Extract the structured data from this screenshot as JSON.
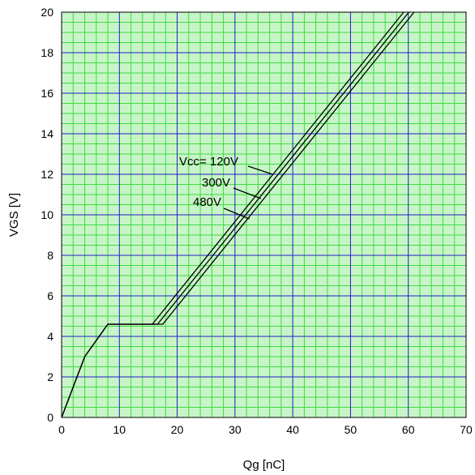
{
  "chart_data": {
    "type": "line",
    "xlabel": "Qg [nC]",
    "ylabel": "VGS [V]",
    "xlim": [
      0,
      70
    ],
    "ylim": [
      0,
      20
    ],
    "x_ticks": [
      "0",
      "10",
      "20",
      "30",
      "40",
      "50",
      "60",
      "70"
    ],
    "y_ticks": [
      "0",
      "2",
      "4",
      "6",
      "8",
      "10",
      "12",
      "14",
      "16",
      "18",
      "20"
    ],
    "grid": {
      "major": true,
      "minor": true,
      "major_color": "#1f1fc8",
      "minor_color": "#3ddc3d",
      "background": "#c8f5c8"
    },
    "series": [
      {
        "label": "Vcc= 120V",
        "x": [
          0,
          4,
          8,
          15.7,
          59.2
        ],
        "y": [
          0,
          3.0,
          4.6,
          4.6,
          20
        ]
      },
      {
        "label": "300V",
        "x": [
          0,
          4,
          8,
          16.6,
          60.1
        ],
        "y": [
          0,
          3.0,
          4.6,
          4.6,
          20
        ]
      },
      {
        "label": "480V",
        "x": [
          0,
          4,
          8,
          17.5,
          61.0
        ],
        "y": [
          0,
          3.0,
          4.6,
          4.6,
          20
        ]
      }
    ],
    "annotations": [
      {
        "text": "Vcc= 120V",
        "target_x": 36.5,
        "target_y": 12.0
      },
      {
        "text": "300V",
        "target_x": 34.5,
        "target_y": 10.8
      },
      {
        "text": "480V",
        "target_x": 32.5,
        "target_y": 9.8
      }
    ],
    "line_color": "#000000"
  }
}
